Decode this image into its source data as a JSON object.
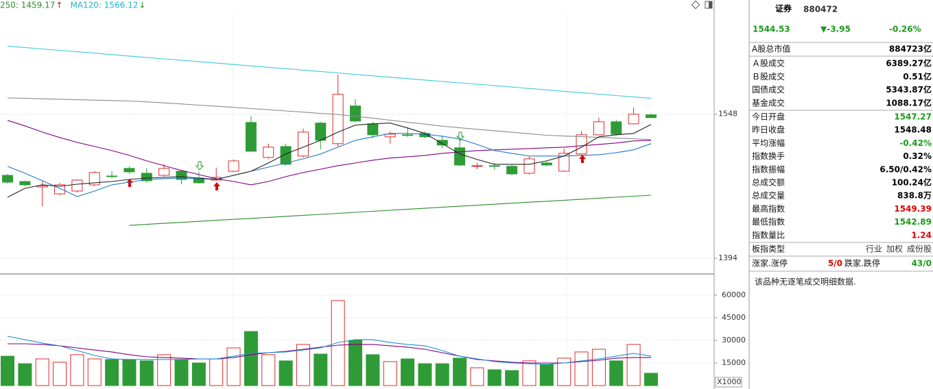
{
  "chart_data": [
    {
      "type": "candlestick",
      "legend_texts": [
        {
          "text": "250: 1459.17",
          "color": "#2e8b2e",
          "arrow": "↑",
          "arrow_color": "#e00000"
        },
        {
          "text": "MA120: 1566.12",
          "color": "#1fb5c0",
          "arrow": "↓",
          "arrow_color": "#1a9a1a"
        }
      ],
      "up_color": "#e02828",
      "down_color": "#2f9b36",
      "open": [
        1482.7,
        1476.1,
        1470.3,
        1462.9,
        1465.9,
        1472.5,
        1482.0,
        1490.1,
        1484.9,
        1482.7,
        1487.1,
        1479.8,
        1477.6,
        1487.1,
        1539.2,
        1501.8,
        1513.5,
        1503.3,
        1538.5,
        1516.5,
        1556.8,
        1537.7,
        1523.8,
        1526.0,
        1527.5,
        1520.1,
        1512.1,
        1492.3,
        1493.0,
        1492.3,
        1484.9,
        1495.9,
        1487.1,
        1505.5,
        1526.0,
        1539.9,
        1537.7,
        1547.3
      ],
      "high": [
        1484.2,
        1476.9,
        1476.1,
        1474.7,
        1478.3,
        1487.1,
        1487.1,
        1492.3,
        1490.1,
        1494.5,
        1488.6,
        1486.4,
        1490.8,
        1499.6,
        1545.8,
        1516.5,
        1516.5,
        1532.6,
        1539.9,
        1590.5,
        1564.1,
        1539.9,
        1529.7,
        1534.1,
        1529.7,
        1525.3,
        1523.8,
        1495.9,
        1495.9,
        1493.7,
        1502.5,
        1497.4,
        1511.3,
        1529.7,
        1544.3,
        1542.1,
        1555.3,
        1548.7
      ],
      "low": [
        1473.9,
        1471.0,
        1449.7,
        1461.5,
        1464.4,
        1471.0,
        1479.8,
        1484.2,
        1474.7,
        1481.3,
        1473.2,
        1473.9,
        1477.6,
        1486.4,
        1507.7,
        1500.3,
        1493.0,
        1501.8,
        1510.6,
        1513.5,
        1539.2,
        1522.3,
        1516.5,
        1523.8,
        1522.3,
        1511.3,
        1492.3,
        1489.3,
        1488.6,
        1482.7,
        1483.5,
        1492.3,
        1486.4,
        1501.1,
        1525.3,
        1525.3,
        1537.0,
        1544.3
      ],
      "close": [
        1475.4,
        1472.5,
        1471.7,
        1472.5,
        1477.6,
        1485.7,
        1481.3,
        1486.4,
        1476.9,
        1490.1,
        1478.3,
        1474.7,
        1480.5,
        1498.1,
        1508.4,
        1512.8,
        1494.5,
        1528.9,
        1520.1,
        1569.3,
        1540.7,
        1526.0,
        1526.7,
        1525.3,
        1523.8,
        1515.0,
        1493.7,
        1493.0,
        1492.3,
        1484.2,
        1500.3,
        1493.7,
        1506.2,
        1526.0,
        1539.9,
        1526.7,
        1548.0,
        1544.3
      ],
      "lines": [
        {
          "color": "#3cc8d8",
          "values": [
            1620.7,
            1619.2,
            1617.7,
            1616.2,
            1614.7,
            1613.2,
            1611.7,
            1610.1,
            1608.6,
            1607.1,
            1605.6,
            1604.1,
            1602.6,
            1601.1,
            1599.6,
            1598.1,
            1596.6,
            1595.1,
            1593.6,
            1592.1,
            1590.5,
            1589.0,
            1587.5,
            1586.0,
            1584.5,
            1583.0,
            1581.5,
            1580.0,
            1578.5,
            1577.0,
            1575.5,
            1574.0,
            1572.4,
            1570.9,
            1569.4,
            1567.9,
            1566.4,
            1564.9
          ]
        },
        {
          "color": "#8a8a8a",
          "values": [
            1565.4,
            1564.9,
            1564.4,
            1564.0,
            1563.5,
            1563.0,
            1562.6,
            1562.1,
            1561.2,
            1560.1,
            1558.9,
            1557.7,
            1556.5,
            1555.3,
            1554.0,
            1552.8,
            1551.5,
            1550.2,
            1548.9,
            1547.7,
            1545.8,
            1543.7,
            1541.6,
            1539.5,
            1537.4,
            1535.2,
            1533.5,
            1531.9,
            1530.3,
            1528.7,
            1527.1,
            1525.5,
            1524.7,
            1524.0,
            1523.2,
            1522.4,
            1521.7,
            1520.9
          ]
        },
        {
          "color": "#800080",
          "values": [
            1541.4,
            1535.5,
            1528.9,
            1523.1,
            1517.9,
            1513.5,
            1509.1,
            1504.0,
            1498.1,
            1493.0,
            1487.9,
            1483.5,
            1479.1,
            1476.1,
            1472.5,
            1476.1,
            1481.3,
            1485.7,
            1489.3,
            1493.0,
            1495.9,
            1498.9,
            1501.1,
            1502.5,
            1504.0,
            1506.2,
            1507.7,
            1509.1,
            1509.9,
            1510.6,
            1511.3,
            1512.1,
            1512.8,
            1514.3,
            1515.7,
            1517.2,
            1519.4,
            1520.1
          ]
        },
        {
          "color": "#1e78c8",
          "values": [
            1492.3,
            1484.9,
            1476.9,
            1468.8,
            1460.0,
            1465.9,
            1472.5,
            1475.4,
            1478.3,
            1479.1,
            1479.8,
            1479.1,
            1478.3,
            1482.7,
            1487.1,
            1491.5,
            1495.9,
            1500.3,
            1505.5,
            1512.8,
            1520.1,
            1523.8,
            1527.5,
            1527.5,
            1526.7,
            1524.5,
            1521.6,
            1515.7,
            1509.1,
            1506.2,
            1503.3,
            1503.3,
            1503.3,
            1504.0,
            1504.7,
            1506.9,
            1509.9,
            1516.5
          ]
        },
        {
          "color": "#222222",
          "values": [
            1459.3,
            1468.8,
            1472.5,
            1471.0,
            1473.2,
            1474.7,
            1476.1,
            1478.3,
            1479.8,
            1480.5,
            1481.3,
            1479.8,
            1478.3,
            1482.7,
            1487.1,
            1495.9,
            1505.5,
            1512.8,
            1520.1,
            1528.9,
            1536.3,
            1537.7,
            1538.5,
            1533.3,
            1527.5,
            1516.5,
            1505.5,
            1499.6,
            1494.5,
            1494.5,
            1494.5,
            1498.1,
            1503.3,
            1512.8,
            1523.8,
            1526.0,
            1527.5,
            1537.0
          ]
        },
        {
          "color": "#2a8a2a",
          "values": [
            null,
            null,
            null,
            null,
            null,
            null,
            null,
            1429.2,
            1430.3,
            1431.4,
            1432.4,
            1433.5,
            1434.6,
            1435.7,
            1436.7,
            1437.8,
            1438.9,
            1440.0,
            1441.0,
            1442.1,
            1443.2,
            1444.3,
            1445.4,
            1446.4,
            1447.5,
            1448.6,
            1449.7,
            1450.7,
            1451.8,
            1452.9,
            1454.0,
            1455.0,
            1456.1,
            1457.2,
            1458.3,
            1459.3,
            1460.4,
            1461.5
          ]
        }
      ],
      "ylim": [
        1381,
        1670
      ],
      "yticks": [
        1394,
        1548
      ],
      "grid": true
    },
    {
      "type": "bar",
      "values": [
        19500,
        14500,
        17700,
        15500,
        20500,
        17700,
        17300,
        17300,
        16400,
        20500,
        17300,
        15000,
        17700,
        25000,
        35900,
        20500,
        16400,
        27300,
        20900,
        56400,
        30000,
        20500,
        15900,
        17700,
        14500,
        14500,
        18200,
        11800,
        10500,
        10000,
        16400,
        14100,
        18200,
        22300,
        24100,
        16400,
        27300,
        8200
      ],
      "lines": [
        {
          "color": "#800080",
          "values": [
            27700,
            27700,
            27300,
            26400,
            25000,
            23600,
            22300,
            20500,
            19100,
            18600,
            18200,
            17700,
            17700,
            18600,
            20500,
            21800,
            22700,
            24100,
            25500,
            26800,
            27300,
            27300,
            26400,
            25500,
            24100,
            21800,
            19500,
            17300,
            16400,
            15500,
            15000,
            15000,
            15000,
            15900,
            16800,
            18200,
            18600,
            18600
          ]
        },
        {
          "color": "#1e90d0",
          "values": [
            32700,
            30500,
            28200,
            26400,
            23200,
            20000,
            17700,
            17300,
            17300,
            17300,
            17300,
            17700,
            17700,
            19500,
            21400,
            21800,
            22300,
            23600,
            25000,
            28600,
            30500,
            30500,
            28600,
            27300,
            26400,
            23200,
            19500,
            17700,
            15900,
            15000,
            14500,
            14100,
            15000,
            16400,
            17700,
            19500,
            21400,
            19500
          ]
        }
      ],
      "ylim": [
        0,
        71800
      ],
      "yticks": [
        15000,
        30000,
        45000,
        60000
      ],
      "grid": true,
      "unit_label": "X1000"
    }
  ],
  "panel": {
    "name": "证券",
    "code": "880472",
    "price": "1544.53",
    "change": "▼-3.95",
    "change_pct": "-0.26%",
    "quote_color": "#1a9a1a",
    "rows": [
      {
        "label": "A股总市值",
        "value": "884723亿",
        "color": "#000000"
      },
      {
        "label": "Ａ股成交",
        "value": "6389.27亿",
        "color": "#000000"
      },
      {
        "label": "Ｂ股成交",
        "value": "0.51亿",
        "color": "#000000"
      },
      {
        "label": "国债成交",
        "value": "5343.87亿",
        "color": "#000000"
      },
      {
        "label": "基金成交",
        "value": "1088.17亿",
        "color": "#000000"
      },
      {
        "label": "今日开盘",
        "value": "1547.27",
        "color": "#1a9a1a"
      },
      {
        "label": "昨日收盘",
        "value": "1548.48",
        "color": "#000000"
      },
      {
        "label": "平均涨幅",
        "value": "-0.42%",
        "color": "#1a9a1a"
      },
      {
        "label": "指数换手",
        "value": "0.32%",
        "color": "#000000"
      },
      {
        "label": "指数振幅",
        "value": "6.50/0.42%",
        "color": "#000000"
      },
      {
        "label": "总成交额",
        "value": "100.24亿",
        "color": "#000000"
      },
      {
        "label": "总成交量",
        "value": "838.8万",
        "color": "#000000"
      },
      {
        "label": "最高指数",
        "value": "1549.39",
        "color": "#e00000"
      },
      {
        "label": "最低指数",
        "value": "1542.89",
        "color": "#1a9a1a"
      },
      {
        "label": "指数量比",
        "value": "1.24",
        "color": "#e00000"
      }
    ],
    "board_type": {
      "label": "板指类型",
      "options": [
        "行业",
        "加权",
        "成份股"
      ]
    },
    "breadth": {
      "up_label": "涨家.涨停",
      "up_value": "5/0",
      "down_label": "跌家.跌停",
      "down_value": "43/0"
    },
    "note": "该品种无逐笔成交明细数据."
  }
}
